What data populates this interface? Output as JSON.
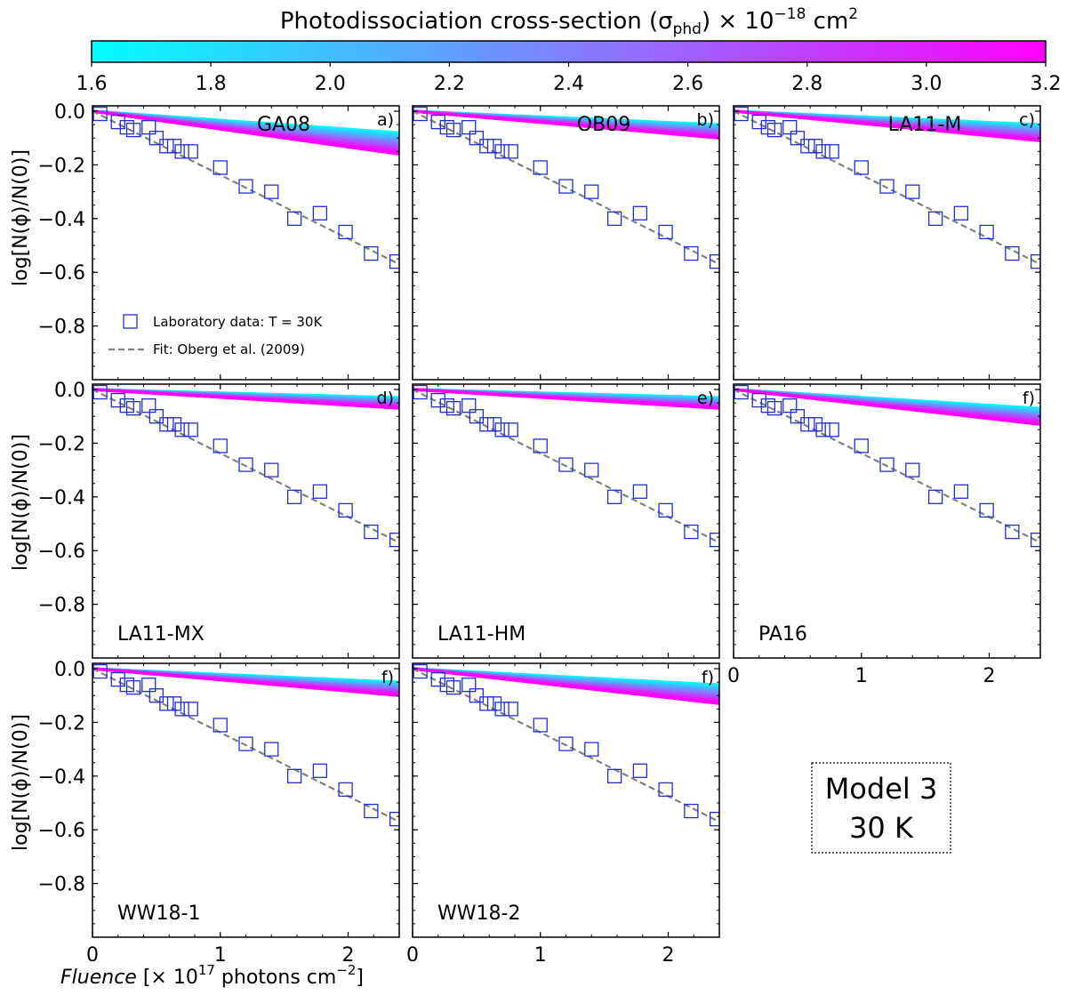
{
  "chart_data": {
    "type": "scatter",
    "colorbar": {
      "title": "Photodissociation cross-section (σ",
      "title_sub": "phd",
      "title_tail": ") × 10",
      "title_exp": "−18",
      "title_unit": " cm",
      "title_unit_exp": "2",
      "ticks": [
        "1.6",
        "1.8",
        "2.0",
        "2.2",
        "2.4",
        "2.6",
        "2.8",
        "3.0",
        "3.2"
      ],
      "range": [
        1.6,
        3.2
      ],
      "colors": [
        "#00ffff",
        "#ff00ff"
      ]
    },
    "shared_axes": {
      "ylabel": "log[N(ϕ)/N(0)]",
      "xlabel_italic": "Fluence",
      "xlabel_pre": " [× 10",
      "xlabel_exp": "17",
      "xlabel_post": " photons cm",
      "xlabel_post_exp": "−2",
      "xlabel_end": "]",
      "xlim": [
        0,
        2.4
      ],
      "ylim": [
        -1.0,
        0.02
      ],
      "x_ticks": [
        "0",
        "1",
        "2"
      ],
      "y_ticks": [
        "0.0",
        "−0.2",
        "−0.4",
        "−0.6",
        "−0.8"
      ],
      "y_tick_values": [
        0.0,
        -0.2,
        -0.4,
        -0.6,
        -0.8
      ],
      "x_tick_values": [
        0,
        1,
        2
      ]
    },
    "laboratory_data": {
      "label": "Laboratory data: T = 30K",
      "x": [
        0.06,
        0.2,
        0.27,
        0.32,
        0.44,
        0.5,
        0.58,
        0.64,
        0.7,
        0.77,
        1.0,
        1.2,
        1.4,
        1.58,
        1.78,
        1.98,
        2.18,
        2.38
      ],
      "y": [
        -0.01,
        -0.04,
        -0.06,
        -0.07,
        -0.06,
        -0.1,
        -0.13,
        -0.13,
        -0.15,
        -0.15,
        -0.21,
        -0.28,
        -0.3,
        -0.4,
        -0.38,
        -0.45,
        -0.53,
        -0.56
      ]
    },
    "fit": {
      "label": "Fit: Oberg et al. (2009)",
      "x": [
        0,
        2.4
      ],
      "y": [
        0.0,
        -0.57
      ]
    },
    "panels": [
      {
        "name": "GA08",
        "letter": "a)",
        "name_pos": "top",
        "band_end": [
          -0.08,
          -0.16
        ]
      },
      {
        "name": "OB09",
        "letter": "b)",
        "name_pos": "top",
        "band_end": [
          -0.05,
          -0.1
        ]
      },
      {
        "name": "LA11-M",
        "letter": "c)",
        "name_pos": "top",
        "band_end": [
          -0.05,
          -0.11
        ]
      },
      {
        "name": "LA11-MX",
        "letter": "d)",
        "name_pos": "bottom",
        "band_end": [
          -0.03,
          -0.07
        ]
      },
      {
        "name": "LA11-HM",
        "letter": "e)",
        "name_pos": "bottom",
        "band_end": [
          -0.03,
          -0.07
        ]
      },
      {
        "name": "PA16",
        "letter": "f)",
        "name_pos": "bottom",
        "band_end": [
          -0.07,
          -0.13
        ]
      },
      {
        "name": "WW18-1",
        "letter": "f)",
        "name_pos": "bottom",
        "band_end": [
          -0.05,
          -0.1
        ]
      },
      {
        "name": "WW18-2",
        "letter": "f)",
        "name_pos": "bottom",
        "band_end": [
          -0.06,
          -0.13
        ]
      }
    ],
    "model_box": {
      "line1": "Model 3",
      "line2": "30 K"
    }
  }
}
